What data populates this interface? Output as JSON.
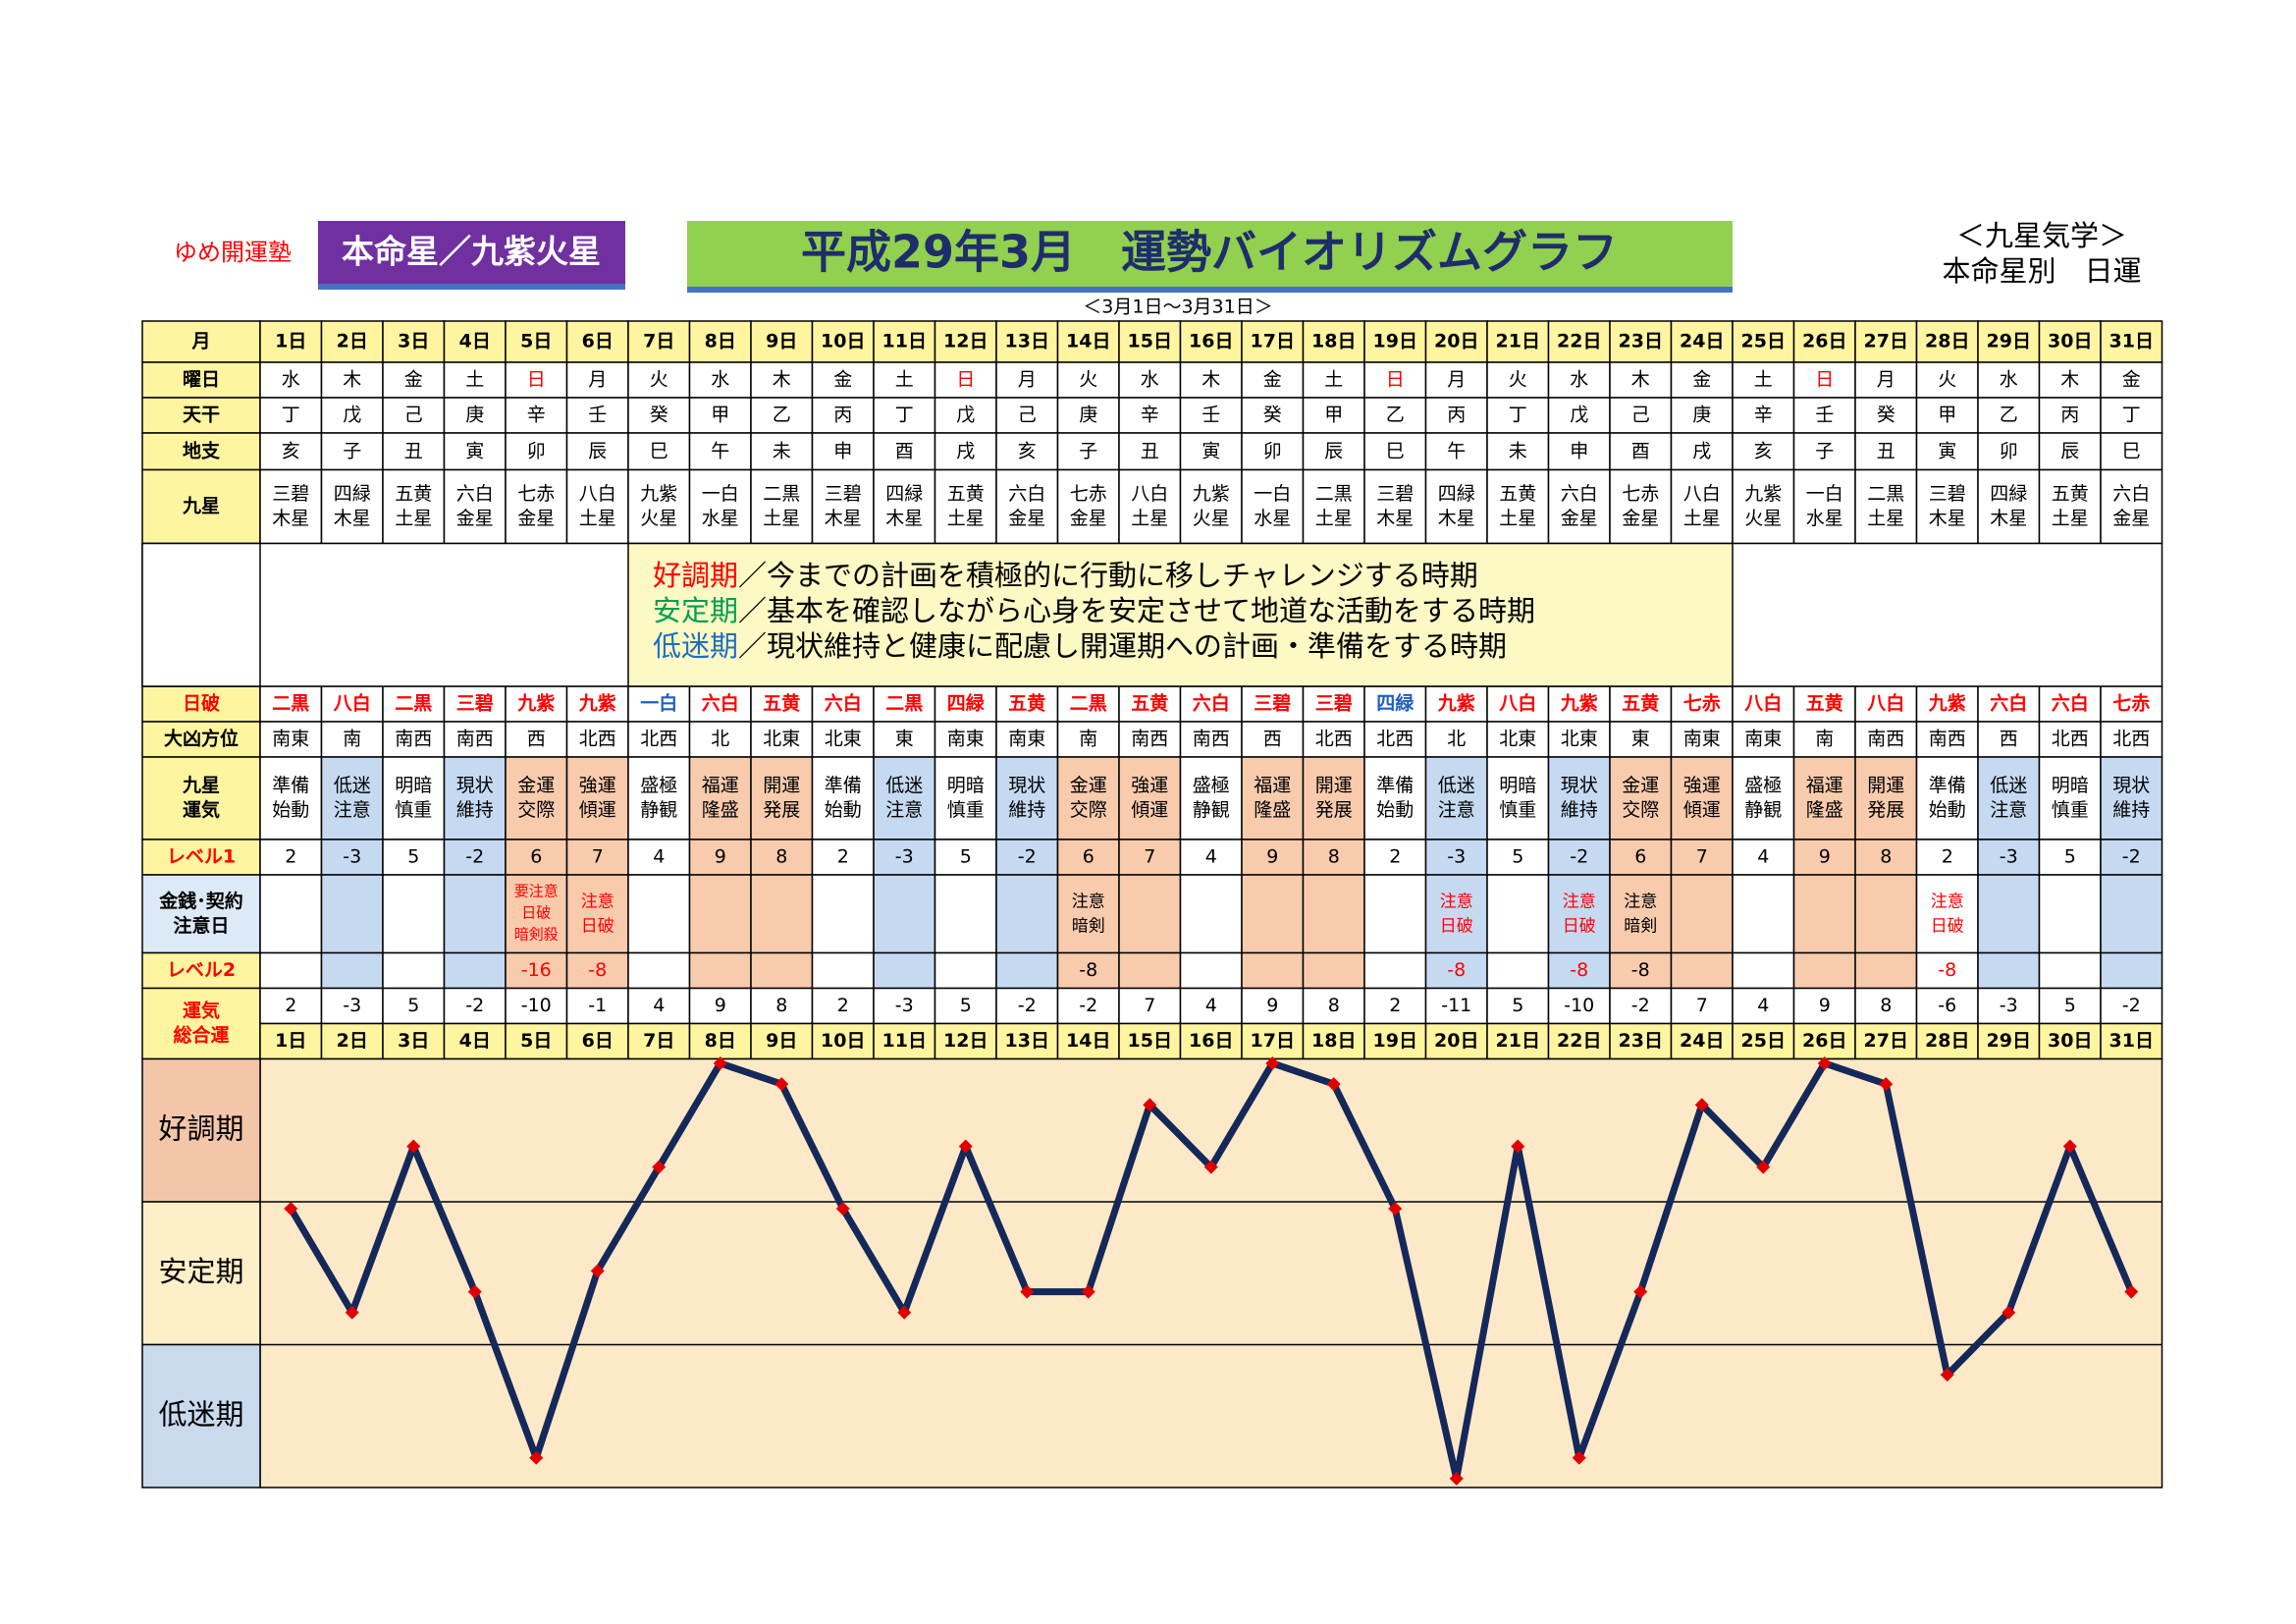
{
  "header": {
    "school": "ゆめ開運塾",
    "star": "本命星／九紫火星",
    "title": "平成29年3月　運勢バイオリズムグラフ",
    "period": "＜3月1日～3月31日＞",
    "system": "＜九星気学＞",
    "kind": "本命星別　日運"
  },
  "table": {
    "labels": {
      "month": "月",
      "weekday": "曜日",
      "stem": "天干",
      "branch": "地支",
      "star": "九星",
      "daybreak": "日破",
      "direction": "大凶方位",
      "fortune": [
        "九星",
        "運気"
      ],
      "level1": "レベル1",
      "money": [
        "金銭･契約",
        "注意日"
      ],
      "level2": "レベル2",
      "total": [
        "運気",
        "総合運"
      ]
    },
    "weekday": [
      "水",
      "木",
      "金",
      "土",
      "日",
      "月",
      "火",
      "水",
      "木",
      "金",
      "土",
      "日",
      "月",
      "火",
      "水",
      "木",
      "金",
      "土",
      "日",
      "月",
      "火",
      "水",
      "木",
      "金",
      "土",
      "日",
      "月",
      "火",
      "水",
      "木",
      "金"
    ],
    "weekday_colors": [
      null,
      null,
      null,
      null,
      "#ff0000",
      null,
      null,
      null,
      null,
      null,
      null,
      "#ff0000",
      null,
      null,
      null,
      null,
      null,
      null,
      "#ff0000",
      null,
      null,
      null,
      null,
      null,
      null,
      "#ff0000",
      null,
      null,
      null,
      null,
      null
    ],
    "stem": [
      "丁",
      "戊",
      "己",
      "庚",
      "辛",
      "壬",
      "癸",
      "甲",
      "乙",
      "丙",
      "丁",
      "戊",
      "己",
      "庚",
      "辛",
      "壬",
      "癸",
      "甲",
      "乙",
      "丙",
      "丁",
      "戊",
      "己",
      "庚",
      "辛",
      "壬",
      "癸",
      "甲",
      "乙",
      "丙",
      "丁"
    ],
    "branch": [
      "亥",
      "子",
      "丑",
      "寅",
      "卯",
      "辰",
      "巳",
      "午",
      "未",
      "申",
      "酉",
      "戌",
      "亥",
      "子",
      "丑",
      "寅",
      "卯",
      "辰",
      "巳",
      "午",
      "未",
      "申",
      "酉",
      "戌",
      "亥",
      "子",
      "丑",
      "寅",
      "卯",
      "辰",
      "巳"
    ],
    "star": [
      [
        "三碧",
        "木星"
      ],
      [
        "四緑",
        "木星"
      ],
      [
        "五黄",
        "土星"
      ],
      [
        "六白",
        "金星"
      ],
      [
        "七赤",
        "金星"
      ],
      [
        "八白",
        "土星"
      ],
      [
        "九紫",
        "火星"
      ],
      [
        "一白",
        "水星"
      ],
      [
        "二黒",
        "土星"
      ],
      [
        "三碧",
        "木星"
      ],
      [
        "四緑",
        "木星"
      ],
      [
        "五黄",
        "土星"
      ],
      [
        "六白",
        "金星"
      ],
      [
        "七赤",
        "金星"
      ],
      [
        "八白",
        "土星"
      ],
      [
        "九紫",
        "火星"
      ],
      [
        "一白",
        "水星"
      ],
      [
        "二黒",
        "土星"
      ],
      [
        "三碧",
        "木星"
      ],
      [
        "四緑",
        "木星"
      ],
      [
        "五黄",
        "土星"
      ],
      [
        "六白",
        "金星"
      ],
      [
        "七赤",
        "金星"
      ],
      [
        "八白",
        "土星"
      ],
      [
        "九紫",
        "火星"
      ],
      [
        "一白",
        "水星"
      ],
      [
        "二黒",
        "土星"
      ],
      [
        "三碧",
        "木星"
      ],
      [
        "四緑",
        "木星"
      ],
      [
        "五黄",
        "土星"
      ],
      [
        "六白",
        "金星"
      ]
    ],
    "legend": [
      {
        "term": "好調期",
        "text": "／今までの計画を積極的に行動に移しチャレンジする時期",
        "color": "#ff0000"
      },
      {
        "term": "安定期",
        "text": "／基本を確認しながら心身を安定させて地道な活動をする時期",
        "color": "#00a050"
      },
      {
        "term": "低迷期",
        "text": "／現状維持と健康に配慮し開運期への計画・準備をする時期",
        "color": "#1f6fc0"
      }
    ],
    "daybreak": [
      "二黒",
      "八白",
      "二黒",
      "三碧",
      "九紫",
      "九紫",
      "一白",
      "六白",
      "五黄",
      "六白",
      "二黒",
      "四緑",
      "五黄",
      "二黒",
      "五黄",
      "六白",
      "三碧",
      "三碧",
      "四緑",
      "九紫",
      "八白",
      "九紫",
      "五黄",
      "七赤",
      "八白",
      "五黄",
      "八白",
      "九紫",
      "六白",
      "六白",
      "七赤"
    ],
    "daybreak_colors": [
      "#ff0000",
      "#ff0000",
      "#ff0000",
      "#ff0000",
      "#ff0000",
      "#ff0000",
      "#1f5fbf",
      "#ff0000",
      "#ff0000",
      "#ff0000",
      "#ff0000",
      "#ff0000",
      "#ff0000",
      "#ff0000",
      "#ff0000",
      "#ff0000",
      "#ff0000",
      "#ff0000",
      "#1f5fbf",
      "#ff0000",
      "#ff0000",
      "#ff0000",
      "#ff0000",
      "#ff0000",
      "#ff0000",
      "#ff0000",
      "#ff0000",
      "#ff0000",
      "#ff0000",
      "#ff0000",
      "#ff0000"
    ],
    "direction": [
      "南東",
      "南",
      "南西",
      "南西",
      "西",
      "北西",
      "北西",
      "北",
      "北東",
      "北東",
      "東",
      "南東",
      "南東",
      "南",
      "南西",
      "南西",
      "西",
      "北西",
      "北西",
      "北",
      "北東",
      "北東",
      "東",
      "南東",
      "南東",
      "南",
      "南西",
      "南西",
      "西",
      "北西",
      "北西"
    ],
    "fortune": [
      [
        "準備",
        "始動"
      ],
      [
        "低迷",
        "注意"
      ],
      [
        "明暗",
        "慎重"
      ],
      [
        "現状",
        "維持"
      ],
      [
        "金運",
        "交際"
      ],
      [
        "強運",
        "傾運"
      ],
      [
        "盛極",
        "静観"
      ],
      [
        "福運",
        "隆盛"
      ],
      [
        "開運",
        "発展"
      ],
      [
        "準備",
        "始動"
      ],
      [
        "低迷",
        "注意"
      ],
      [
        "明暗",
        "慎重"
      ],
      [
        "現状",
        "維持"
      ],
      [
        "金運",
        "交際"
      ],
      [
        "強運",
        "傾運"
      ],
      [
        "盛極",
        "静観"
      ],
      [
        "福運",
        "隆盛"
      ],
      [
        "開運",
        "発展"
      ],
      [
        "準備",
        "始動"
      ],
      [
        "低迷",
        "注意"
      ],
      [
        "明暗",
        "慎重"
      ],
      [
        "現状",
        "維持"
      ],
      [
        "金運",
        "交際"
      ],
      [
        "強運",
        "傾運"
      ],
      [
        "盛極",
        "静観"
      ],
      [
        "福運",
        "隆盛"
      ],
      [
        "開運",
        "発展"
      ],
      [
        "準備",
        "始動"
      ],
      [
        "低迷",
        "注意"
      ],
      [
        "明暗",
        "慎重"
      ],
      [
        "現状",
        "維持"
      ]
    ],
    "level1": [
      2,
      -3,
      5,
      -2,
      6,
      7,
      4,
      9,
      8,
      2,
      -3,
      5,
      -2,
      6,
      7,
      4,
      9,
      8,
      2,
      -3,
      5,
      -2,
      6,
      7,
      4,
      9,
      8,
      2,
      -3,
      5,
      -2
    ],
    "column_fills": [
      null,
      "#c5d9f1",
      null,
      "#c5d9f1",
      "#f8cbad",
      "#f8cbad",
      null,
      "#f8cbad",
      "#f8cbad",
      null,
      "#c5d9f1",
      null,
      "#c5d9f1",
      "#f8cbad",
      "#f8cbad",
      null,
      "#f8cbad",
      "#f8cbad",
      null,
      "#c5d9f1",
      null,
      "#c5d9f1",
      "#f8cbad",
      "#f8cbad",
      null,
      "#f8cbad",
      "#f8cbad",
      null,
      "#c5d9f1",
      null,
      "#c5d9f1"
    ],
    "money": [
      null,
      null,
      null,
      null,
      [
        "要注意",
        "日破",
        "暗剣殺"
      ],
      [
        "注意",
        "日破"
      ],
      null,
      null,
      null,
      null,
      null,
      null,
      null,
      [
        "注意",
        "暗剣"
      ],
      null,
      null,
      null,
      null,
      null,
      [
        "注意",
        "日破"
      ],
      null,
      [
        "注意",
        "日破"
      ],
      [
        "注意",
        "暗剣"
      ],
      null,
      null,
      null,
      null,
      [
        "注意",
        "日破"
      ],
      null,
      null,
      null
    ],
    "money_colors": [
      null,
      null,
      null,
      null,
      "#ff0000",
      "#ff0000",
      null,
      null,
      null,
      null,
      null,
      null,
      null,
      "#000000",
      null,
      null,
      null,
      null,
      null,
      "#ff0000",
      null,
      "#ff0000",
      "#000000",
      null,
      null,
      null,
      null,
      "#ff0000",
      null,
      null,
      null
    ],
    "level2": [
      null,
      null,
      null,
      null,
      -16,
      -8,
      null,
      null,
      null,
      null,
      null,
      null,
      null,
      -8,
      null,
      null,
      null,
      null,
      null,
      -8,
      null,
      -8,
      -8,
      null,
      null,
      null,
      null,
      -8,
      null,
      null,
      null
    ],
    "level2_colors": [
      null,
      null,
      null,
      null,
      "#ff0000",
      "#ff0000",
      null,
      null,
      null,
      null,
      null,
      null,
      null,
      "#000000",
      null,
      null,
      null,
      null,
      null,
      "#ff0000",
      null,
      "#ff0000",
      "#000000",
      null,
      null,
      null,
      null,
      "#ff0000",
      null,
      null,
      null
    ]
  },
  "chart_data": {
    "type": "line",
    "categories": [
      "1日",
      "2日",
      "3日",
      "4日",
      "5日",
      "6日",
      "7日",
      "8日",
      "9日",
      "10日",
      "11日",
      "12日",
      "13日",
      "14日",
      "15日",
      "16日",
      "17日",
      "18日",
      "19日",
      "20日",
      "21日",
      "22日",
      "23日",
      "24日",
      "25日",
      "26日",
      "27日",
      "28日",
      "29日",
      "30日",
      "31日"
    ],
    "values": [
      2,
      -3,
      5,
      -2,
      -10,
      -1,
      4,
      9,
      8,
      2,
      -3,
      5,
      -2,
      -2,
      7,
      4,
      9,
      8,
      2,
      -11,
      5,
      -10,
      -2,
      7,
      4,
      9,
      8,
      -6,
      -3,
      5,
      -2
    ],
    "ylim": [
      -11.43,
      9.21
    ],
    "color": "#14285a",
    "marker_color": "#e00000"
  }
}
